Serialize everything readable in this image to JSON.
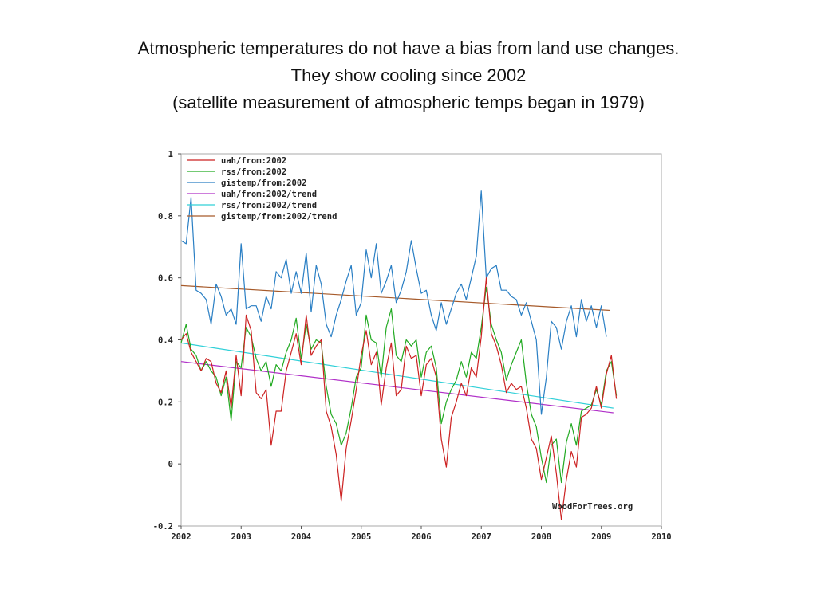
{
  "slide": {
    "title_lines": [
      "Atmospheric temperatures do not have a bias from land use changes.",
      "They show cooling since 2002",
      "(satellite measurement of atmospheric temps began in 1979)"
    ]
  },
  "chart_data": {
    "type": "line",
    "xlim": [
      2002,
      2010
    ],
    "ylim": [
      -0.2,
      1.0
    ],
    "x_ticks": [
      "2002",
      "2003",
      "2004",
      "2005",
      "2006",
      "2007",
      "2008",
      "2009",
      "2010"
    ],
    "y_ticks": [
      "1",
      "0.8",
      "0.6",
      "0.4",
      "0.2",
      "0",
      "-0.2"
    ],
    "grid": false,
    "legend_position": "top-left",
    "credit": "WoodForTrees.org",
    "colors": {
      "uah": "#cc2222",
      "rss": "#22aa22",
      "gistemp": "#2a7fc4",
      "uah_trend": "#b030c8",
      "rss_trend": "#30d0d8",
      "gistemp_trend": "#a65a2a"
    },
    "series": [
      {
        "name": "uah/from:2002",
        "color_key": "uah",
        "kind": "monthly",
        "start": 2002.0,
        "step": 0.0833333,
        "values": [
          0.4,
          0.42,
          0.36,
          0.33,
          0.3,
          0.34,
          0.33,
          0.26,
          0.23,
          0.3,
          0.18,
          0.35,
          0.22,
          0.48,
          0.43,
          0.23,
          0.21,
          0.24,
          0.06,
          0.17,
          0.17,
          0.3,
          0.36,
          0.42,
          0.32,
          0.48,
          0.35,
          0.38,
          0.4,
          0.17,
          0.12,
          0.03,
          -0.12,
          0.05,
          0.14,
          0.24,
          0.35,
          0.43,
          0.32,
          0.36,
          0.19,
          0.31,
          0.39,
          0.22,
          0.24,
          0.38,
          0.34,
          0.35,
          0.22,
          0.32,
          0.34,
          0.28,
          0.08,
          -0.01,
          0.15,
          0.2,
          0.26,
          0.22,
          0.31,
          0.28,
          0.41,
          0.6,
          0.42,
          0.38,
          0.32,
          0.23,
          0.26,
          0.24,
          0.25,
          0.18,
          0.08,
          0.05,
          -0.05,
          0.02,
          0.09,
          -0.03,
          -0.18,
          -0.05,
          0.04,
          -0.01,
          0.15,
          0.16,
          0.18,
          0.25,
          0.18,
          0.29,
          0.35,
          0.21
        ]
      },
      {
        "name": "rss/from:2002",
        "color_key": "rss",
        "kind": "monthly",
        "start": 2002.0,
        "step": 0.0833333,
        "values": [
          0.39,
          0.45,
          0.37,
          0.35,
          0.3,
          0.33,
          0.3,
          0.28,
          0.22,
          0.28,
          0.14,
          0.33,
          0.31,
          0.44,
          0.41,
          0.34,
          0.3,
          0.33,
          0.25,
          0.32,
          0.3,
          0.36,
          0.4,
          0.47,
          0.34,
          0.45,
          0.37,
          0.4,
          0.39,
          0.25,
          0.16,
          0.13,
          0.06,
          0.1,
          0.18,
          0.28,
          0.31,
          0.48,
          0.4,
          0.39,
          0.28,
          0.44,
          0.5,
          0.35,
          0.33,
          0.4,
          0.38,
          0.4,
          0.28,
          0.36,
          0.38,
          0.31,
          0.13,
          0.2,
          0.24,
          0.27,
          0.33,
          0.28,
          0.36,
          0.34,
          0.44,
          0.57,
          0.45,
          0.4,
          0.36,
          0.27,
          0.32,
          0.36,
          0.4,
          0.26,
          0.16,
          0.12,
          0.02,
          -0.06,
          0.06,
          0.08,
          -0.06,
          0.07,
          0.13,
          0.06,
          0.17,
          0.18,
          0.19,
          0.24,
          0.19,
          0.3,
          0.33,
          0.22
        ]
      },
      {
        "name": "gistemp/from:2002",
        "color_key": "gistemp",
        "kind": "monthly",
        "start": 2002.0,
        "step": 0.0833333,
        "values": [
          0.72,
          0.71,
          0.86,
          0.56,
          0.55,
          0.53,
          0.45,
          0.58,
          0.54,
          0.48,
          0.5,
          0.45,
          0.71,
          0.5,
          0.51,
          0.51,
          0.46,
          0.54,
          0.5,
          0.62,
          0.6,
          0.66,
          0.55,
          0.62,
          0.55,
          0.68,
          0.49,
          0.64,
          0.58,
          0.45,
          0.41,
          0.48,
          0.53,
          0.59,
          0.64,
          0.48,
          0.52,
          0.69,
          0.6,
          0.71,
          0.55,
          0.59,
          0.64,
          0.52,
          0.56,
          0.62,
          0.72,
          0.63,
          0.55,
          0.56,
          0.48,
          0.43,
          0.52,
          0.45,
          0.5,
          0.55,
          0.58,
          0.53,
          0.6,
          0.67,
          0.88,
          0.6,
          0.63,
          0.64,
          0.56,
          0.56,
          0.54,
          0.53,
          0.48,
          0.52,
          0.46,
          0.4,
          0.16,
          0.28,
          0.46,
          0.44,
          0.37,
          0.46,
          0.51,
          0.41,
          0.53,
          0.46,
          0.51,
          0.44,
          0.51,
          0.41
        ]
      },
      {
        "name": "uah/from:2002/trend",
        "color_key": "uah_trend",
        "kind": "trend",
        "x": [
          2002.0,
          2009.2
        ],
        "y": [
          0.33,
          0.165
        ]
      },
      {
        "name": "rss/from:2002/trend",
        "color_key": "rss_trend",
        "kind": "trend",
        "x": [
          2002.0,
          2009.2
        ],
        "y": [
          0.39,
          0.18
        ]
      },
      {
        "name": "gistemp/from:2002/trend",
        "color_key": "gistemp_trend",
        "kind": "trend",
        "x": [
          2002.0,
          2009.15
        ],
        "y": [
          0.575,
          0.495
        ]
      }
    ]
  }
}
